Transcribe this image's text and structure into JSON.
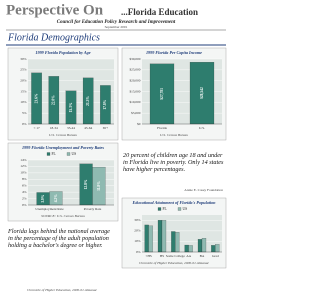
{
  "header": {
    "title": "Perspective On",
    "title_suffix": "...Florida Education",
    "subtitle": "Council for Education Policy Research and Improvement",
    "date": "September 2001"
  },
  "section_title": "Florida Demographics",
  "chart_data": [
    {
      "type": "bar",
      "title": "1999 Florida Population by Age",
      "categories": [
        "< 17",
        "18-34",
        "35-44",
        "45-64",
        "65+"
      ],
      "values": [
        23.6,
        22.0,
        15.3,
        21.3,
        17.8
      ],
      "value_labels": [
        "23.6%",
        "22.0%",
        "15.3%",
        "21.3%",
        "17.8%"
      ],
      "color": "#2e7d6e",
      "ylim": [
        0,
        30
      ],
      "yticks": [
        {
          "value": 0,
          "label": "0%"
        },
        {
          "value": 5,
          "label": "5%"
        },
        {
          "value": 10,
          "label": "10%"
        },
        {
          "value": 15,
          "label": "15%"
        },
        {
          "value": 20,
          "label": "20%"
        },
        {
          "value": 25,
          "label": "25%"
        },
        {
          "value": 30,
          "label": "30%"
        }
      ],
      "grid": true,
      "source": "U.S. Census Bureau"
    },
    {
      "type": "bar",
      "title": "1999 Florida Per Capita Income",
      "categories": [
        "Florida",
        "U.S."
      ],
      "values": [
        27781,
        28542
      ],
      "value_labels": [
        "$27,781",
        "$28,542"
      ],
      "color": "#2e7d6e",
      "ylim": [
        0,
        30000
      ],
      "yticks": [
        {
          "value": 0,
          "label": "$0"
        },
        {
          "value": 5000,
          "label": "$5,000"
        },
        {
          "value": 10000,
          "label": "$10,000"
        },
        {
          "value": 15000,
          "label": "$15,000"
        },
        {
          "value": 20000,
          "label": "$20,000"
        },
        {
          "value": 25000,
          "label": "$25,000"
        },
        {
          "value": 30000,
          "label": "$30,000"
        }
      ],
      "grid": true,
      "source": "U.S. Census Bureau"
    },
    {
      "type": "bar",
      "title": "1999 Florida Unemployment and Poverty Rates",
      "categories": [
        "Unemployment Rate",
        "Poverty Rate"
      ],
      "series": [
        {
          "name": "FL",
          "color": "#2e7d6e",
          "values": [
            3.9,
            12.8
          ],
          "value_labels": [
            "3.9%",
            "12.8%"
          ]
        },
        {
          "name": "US",
          "color": "#8fbab1",
          "values": [
            4.2,
            11.8
          ],
          "value_labels": [
            "4.2%",
            "11.8%"
          ]
        }
      ],
      "ylim": [
        0,
        14
      ],
      "yticks": [
        {
          "value": 0,
          "label": "0%"
        },
        {
          "value": 2,
          "label": "2%"
        },
        {
          "value": 4,
          "label": "4%"
        },
        {
          "value": 6,
          "label": "6%"
        },
        {
          "value": 8,
          "label": "8%"
        },
        {
          "value": 10,
          "label": "10%"
        },
        {
          "value": 12,
          "label": "12%"
        },
        {
          "value": 14,
          "label": "14%"
        }
      ],
      "grid": true,
      "source": "SOURCE: U.S. Census Bureau"
    },
    {
      "type": "bar",
      "title": "Educational Attainment of Florida's Population",
      "categories": [
        "<HS",
        "HS",
        "Some College",
        "AA",
        "BA",
        "Grad"
      ],
      "series": [
        {
          "name": "FL",
          "color": "#2e7d6e",
          "values": [
            25.6,
            30.1,
            19.4,
            6.6,
            12.0,
            6.3
          ]
        },
        {
          "name": "US",
          "color": "#8fbab1",
          "values": [
            24.8,
            30.0,
            18.7,
            6.2,
            13.1,
            7.2
          ]
        }
      ],
      "ylim": [
        0,
        35
      ],
      "yticks": [
        {
          "value": 0,
          "label": "0%"
        },
        {
          "value": 10,
          "label": "10%"
        },
        {
          "value": 20,
          "label": "20%"
        },
        {
          "value": 30,
          "label": "30%"
        }
      ],
      "grid": true,
      "source": "Chronicle of Higher Education, 2000-01 Almanac"
    }
  ],
  "callout": {
    "text": "20 percent of children age 18 and under in Florida live in poverty. Only 14 states have higher percentages.",
    "source": "Annie E. Casey Foundation"
  },
  "note": {
    "text": "Florida lags behind the national average in the percentage of the adult population holding a bachelor's degree or higher.",
    "source": "Chronicle of Higher Education, 2000-01 Almanac"
  }
}
